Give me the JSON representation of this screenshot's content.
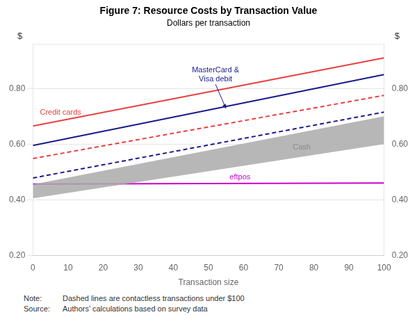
{
  "chart_data": {
    "type": "line",
    "title": "Figure 7: Resource Costs by Transaction Value",
    "subtitle": "Dollars per transaction",
    "xlabel": "Transaction size",
    "ylabel": "$",
    "y2label": "$",
    "xlim": [
      0,
      100
    ],
    "xticks": [
      0,
      10,
      20,
      30,
      40,
      50,
      60,
      70,
      80,
      90,
      100
    ],
    "ylim": [
      0.2,
      0.96
    ],
    "yticks": [
      {
        "value": 0.2,
        "label": "0.20"
      },
      {
        "value": 0.4,
        "label": "0.40"
      },
      {
        "value": 0.6,
        "label": "0.60"
      },
      {
        "value": 0.8,
        "label": "0.80"
      }
    ],
    "y2lim": [
      0.2,
      0.96
    ],
    "y2ticks": [
      {
        "value": 0.2,
        "label": "0.20"
      },
      {
        "value": 0.4,
        "label": "0.40"
      },
      {
        "value": 0.6,
        "label": "0.60"
      },
      {
        "value": 0.8,
        "label": "0.80"
      }
    ],
    "grid": "y",
    "series": [
      {
        "type": "band",
        "color": "#aaaaaa",
        "x": [
          0,
          100
        ],
        "values_lower": [
          0.405,
          0.6
        ],
        "values_upper": [
          0.455,
          0.7
        ]
      },
      {
        "type": "line",
        "color": "#e84040",
        "line_style": "solid",
        "x": [
          0,
          100
        ],
        "values": [
          0.665,
          0.91
        ]
      },
      {
        "type": "line",
        "color": "#1a1a8c",
        "line_style": "solid",
        "x": [
          0,
          100
        ],
        "values": [
          0.595,
          0.85
        ]
      },
      {
        "type": "line",
        "color": "#e84040",
        "line_style": "dashed",
        "x": [
          0,
          100
        ],
        "values": [
          0.548,
          0.775
        ]
      },
      {
        "type": "line",
        "color": "#1a1a8c",
        "line_style": "dashed",
        "x": [
          0,
          100
        ],
        "values": [
          0.478,
          0.715
        ]
      },
      {
        "type": "line",
        "color": "#cc00cc",
        "line_style": "solid",
        "x": [
          0,
          100
        ],
        "values": [
          0.456,
          0.46
        ]
      }
    ],
    "annotations": [
      {
        "text": "Credit cards",
        "x": 2,
        "y": 0.7,
        "color": "#e84040"
      },
      {
        "text": "eftpos",
        "x": 56,
        "y": 0.468,
        "color": "#cc00cc"
      },
      {
        "text": "Cash",
        "x": 74,
        "y": 0.575,
        "color": "#888888"
      },
      {
        "text": "MasterCard &\nVisa debit",
        "x": 52,
        "y": 0.82,
        "arrow_to": [
          55,
          0.727
        ],
        "color": "#1a1a8c"
      }
    ],
    "notes": [
      {
        "label": "Note:",
        "text": "Dashed lines are contactless transactions under $100"
      },
      {
        "label": "Source:",
        "text": "Authors’ calculations based on survey data"
      }
    ]
  }
}
